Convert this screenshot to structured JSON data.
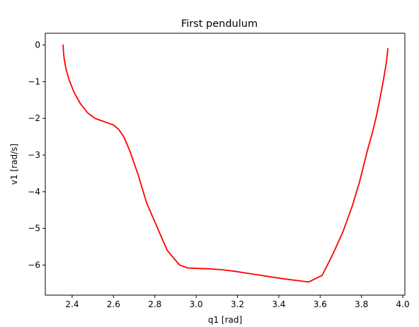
{
  "chart_data": {
    "type": "line",
    "title": "First pendulum",
    "xlabel": "q1 [rad]",
    "ylabel": "v1 [rad/s]",
    "xlim": [
      2.27,
      4.01
    ],
    "ylim": [
      -6.82,
      0.32
    ],
    "xticks": [
      2.4,
      2.6,
      2.8,
      3.0,
      3.2,
      3.4,
      3.6,
      3.8,
      4.0
    ],
    "xtick_labels": [
      "2.4",
      "2.6",
      "2.8",
      "3.0",
      "3.2",
      "3.4",
      "3.6",
      "3.8",
      "4.0"
    ],
    "yticks": [
      0,
      -1,
      -2,
      -3,
      -4,
      -5,
      -6
    ],
    "ytick_labels": [
      "0",
      "−1",
      "−2",
      "−3",
      "−4",
      "−5",
      "−6"
    ],
    "grid": false,
    "series": [
      {
        "color": "#ff0000",
        "x": [
          2.356,
          2.358,
          2.362,
          2.37,
          2.385,
          2.41,
          2.44,
          2.475,
          2.51,
          2.55,
          2.6,
          2.625,
          2.65,
          2.68,
          2.72,
          2.76,
          2.81,
          2.86,
          2.92,
          2.96,
          3.0,
          3.06,
          3.13,
          3.2,
          3.28,
          3.36,
          3.43,
          3.5,
          3.545,
          3.61,
          3.66,
          3.71,
          3.755,
          3.79,
          3.81,
          3.83,
          3.85,
          3.87,
          3.89,
          3.905,
          3.92,
          3.928
        ],
        "y": [
          0.0,
          -0.2,
          -0.4,
          -0.65,
          -0.95,
          -1.3,
          -1.6,
          -1.85,
          -2.0,
          -2.08,
          -2.18,
          -2.3,
          -2.5,
          -2.9,
          -3.55,
          -4.3,
          -4.95,
          -5.6,
          -6.0,
          -6.08,
          -6.09,
          -6.1,
          -6.13,
          -6.18,
          -6.25,
          -6.32,
          -6.38,
          -6.43,
          -6.46,
          -6.28,
          -5.72,
          -5.1,
          -4.4,
          -3.75,
          -3.3,
          -2.85,
          -2.45,
          -2.0,
          -1.45,
          -1.0,
          -0.5,
          -0.1
        ]
      }
    ]
  }
}
